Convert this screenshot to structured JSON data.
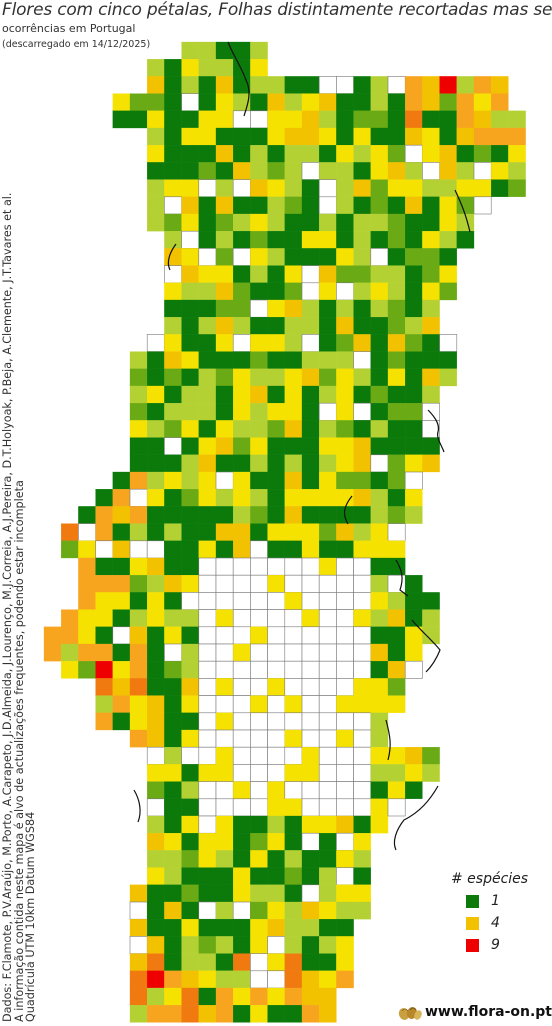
{
  "header": {
    "title": "Flores com cinco pétalas, Folhas distintamente recortadas mas sem ch",
    "subtitle": "ocorrências em Portugal",
    "download_note": "(descarregado em 14/12/2025)"
  },
  "credits": {
    "line1": "Dados: F.Clamote, P.V.Araújo, M.Porto, A.Carapeto, J.D.Almeida, J.Lourenço, M.J.Correia, A.J.Pereira, D.T.Holyoak, P.Beja, A.Clemente, J.T.Tavares et al.",
    "line2": "A informação contida neste mapa é alvo de actualizações frequentes, podendo estar incompleta",
    "line3": "Quadrícula UTM 10km Datum WGS84"
  },
  "legend": {
    "title": "# espécies",
    "items": [
      {
        "value": "1",
        "color": "#0b7a0b"
      },
      {
        "value": "4",
        "color": "#f2c200"
      },
      {
        "value": "9",
        "color": "#ee0000"
      }
    ]
  },
  "brand": {
    "name": "www.flora-on.pt",
    "icon": "flora-on-seed-logo-icon"
  },
  "colors": {
    "empty_cell": "#ffffff",
    "cell_border": "#777777",
    "scale_1": "#0b7a0b",
    "scale_2": "#6aaa14",
    "scale_3": "#b4d134",
    "scale_4": "#f2c200",
    "scale_5": "#f6e200",
    "scale_6": "#f7a51e",
    "scale_7": "#f07a10",
    "scale_9": "#ee0000"
  },
  "map_data": {
    "description": "UTM 10km grid cells colored by number of species (1 to 9)",
    "value_min": 1,
    "value_max": 9
  }
}
